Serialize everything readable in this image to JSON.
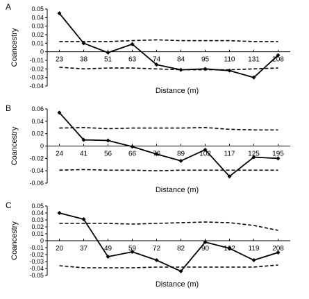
{
  "chart_data": [
    {
      "type": "line",
      "panel_label": "A",
      "xlabel": "Distance (m)",
      "ylabel": "Coancestry",
      "categories": [
        "23",
        "38",
        "51",
        "63",
        "74",
        "84",
        "95",
        "110",
        "131",
        "208"
      ],
      "ylim": [
        -0.04,
        0.05
      ],
      "yticks": [
        0.05,
        0.04,
        0.03,
        0.02,
        0.01,
        0,
        -0.01,
        -0.02,
        -0.03,
        -0.04
      ],
      "ytick_labels": [
        "0.05",
        "0.04",
        "0.03",
        "0.02",
        "0.01",
        "0",
        "-0.01",
        "-0.02",
        "-0.03",
        "-0.04"
      ],
      "grid": false,
      "series": [
        {
          "role": "observed",
          "style": "solid-with-markers",
          "values": [
            0.045,
            0.01,
            -0.001,
            0.009,
            -0.015,
            -0.021,
            -0.02,
            -0.022,
            -0.03,
            -0.004
          ]
        },
        {
          "role": "upper",
          "style": "dashed",
          "values": [
            0.012,
            0.012,
            0.012,
            0.013,
            0.014,
            0.013,
            0.013,
            0.013,
            0.012,
            0.012
          ]
        },
        {
          "role": "lower",
          "style": "dashed",
          "values": [
            -0.018,
            -0.02,
            -0.019,
            -0.019,
            -0.02,
            -0.021,
            -0.021,
            -0.021,
            -0.02,
            -0.019
          ]
        }
      ]
    },
    {
      "type": "line",
      "panel_label": "B",
      "xlabel": "Distance (m)",
      "ylabel": "Coancestry",
      "categories": [
        "24",
        "41",
        "56",
        "66",
        "76",
        "89",
        "102",
        "117",
        "125",
        "195"
      ],
      "ylim": [
        -0.06,
        0.06
      ],
      "yticks": [
        0.06,
        0.04,
        0.02,
        0,
        -0.02,
        -0.04,
        -0.06
      ],
      "ytick_labels": [
        "0.06",
        "0.04",
        "0.02",
        "0",
        "-0.02",
        "-0.04",
        "-0.06"
      ],
      "grid": false,
      "series": [
        {
          "role": "observed",
          "style": "solid-with-markers",
          "values": [
            0.054,
            0.01,
            0.009,
            -0.001,
            -0.013,
            -0.024,
            -0.006,
            -0.049,
            -0.018,
            -0.02
          ]
        },
        {
          "role": "upper",
          "style": "dashed",
          "values": [
            0.029,
            0.03,
            0.028,
            0.029,
            0.029,
            0.029,
            0.03,
            0.027,
            0.026,
            0.026
          ]
        },
        {
          "role": "lower",
          "style": "dashed",
          "values": [
            -0.039,
            -0.038,
            -0.039,
            -0.039,
            -0.04,
            -0.039,
            -0.039,
            -0.039,
            -0.039,
            -0.039
          ]
        }
      ]
    },
    {
      "type": "line",
      "panel_label": "C",
      "xlabel": "Distance (m)",
      "ylabel": "Coancestry",
      "categories": [
        "20",
        "37",
        "49",
        "59",
        "72",
        "82",
        "90",
        "102",
        "119",
        "208"
      ],
      "ylim": [
        -0.05,
        0.05
      ],
      "yticks": [
        0.05,
        0.04,
        0.03,
        0.02,
        0.01,
        0,
        -0.01,
        -0.02,
        -0.03,
        -0.04,
        -0.05
      ],
      "ytick_labels": [
        "0.05",
        "0.04",
        "0.03",
        "0.02",
        "0.01",
        "0",
        "-0.01",
        "-0.02",
        "-0.03",
        "-0.04",
        "-0.05"
      ],
      "grid": false,
      "series": [
        {
          "role": "observed",
          "style": "solid-with-markers",
          "values": [
            0.04,
            0.031,
            -0.023,
            -0.016,
            -0.028,
            -0.044,
            -0.002,
            -0.011,
            -0.028,
            -0.017
          ]
        },
        {
          "role": "upper",
          "style": "dashed",
          "values": [
            0.025,
            0.025,
            0.025,
            0.024,
            0.025,
            0.026,
            0.027,
            0.026,
            0.022,
            0.015
          ]
        },
        {
          "role": "lower",
          "style": "dashed",
          "values": [
            -0.036,
            -0.039,
            -0.039,
            -0.039,
            -0.038,
            -0.038,
            -0.038,
            -0.038,
            -0.038,
            -0.035
          ]
        }
      ]
    }
  ]
}
